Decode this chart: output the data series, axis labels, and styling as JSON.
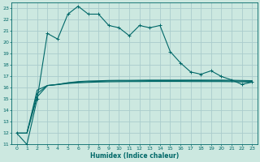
{
  "background_color": "#cce8e0",
  "grid_color": "#aacccc",
  "line_color": "#006868",
  "xlabel": "Humidex (Indice chaleur)",
  "xlim": [
    -0.5,
    23.5
  ],
  "ylim": [
    11,
    23.5
  ],
  "yticks": [
    11,
    12,
    13,
    14,
    15,
    16,
    17,
    18,
    19,
    20,
    21,
    22,
    23
  ],
  "xticks": [
    0,
    1,
    2,
    3,
    4,
    5,
    6,
    7,
    8,
    9,
    10,
    11,
    12,
    13,
    14,
    15,
    16,
    17,
    18,
    19,
    20,
    21,
    22,
    23
  ],
  "series1_x": [
    0,
    1,
    2,
    3,
    4,
    5,
    6,
    7,
    8,
    9,
    10,
    11,
    12,
    13,
    14,
    15,
    16,
    17,
    18,
    19,
    20,
    21,
    22,
    23
  ],
  "series1_y": [
    12.0,
    11.0,
    15.0,
    20.8,
    20.3,
    22.5,
    23.2,
    22.5,
    22.5,
    21.5,
    21.3,
    20.6,
    21.5,
    21.3,
    21.5,
    19.2,
    18.2,
    17.4,
    17.2,
    17.5,
    17.0,
    16.7,
    16.3,
    16.5
  ],
  "series2_x": [
    0,
    1,
    2,
    3,
    4,
    5,
    6,
    7,
    8,
    9,
    10,
    11,
    12,
    13,
    14,
    15,
    16,
    17,
    18,
    19,
    20,
    21,
    22,
    23
  ],
  "series2_y": [
    12.0,
    12.0,
    15.2,
    16.2,
    16.3,
    16.45,
    16.55,
    16.6,
    16.62,
    16.65,
    16.66,
    16.66,
    16.67,
    16.68,
    16.68,
    16.68,
    16.68,
    16.68,
    16.68,
    16.68,
    16.68,
    16.67,
    16.65,
    16.63
  ],
  "series3_x": [
    0,
    1,
    2,
    3,
    4,
    5,
    6,
    7,
    8,
    9,
    10,
    11,
    12,
    13,
    14,
    15,
    16,
    17,
    18,
    19,
    20,
    21,
    22,
    23
  ],
  "series3_y": [
    12.0,
    12.0,
    15.5,
    16.2,
    16.3,
    16.42,
    16.5,
    16.54,
    16.57,
    16.6,
    16.61,
    16.61,
    16.62,
    16.63,
    16.63,
    16.63,
    16.63,
    16.63,
    16.63,
    16.62,
    16.62,
    16.61,
    16.59,
    16.57
  ],
  "series4_x": [
    0,
    1,
    2,
    3,
    4,
    5,
    6,
    7,
    8,
    9,
    10,
    11,
    12,
    13,
    14,
    15,
    16,
    17,
    18,
    19,
    20,
    21,
    22,
    23
  ],
  "series4_y": [
    12.0,
    12.0,
    15.8,
    16.2,
    16.28,
    16.38,
    16.44,
    16.48,
    16.51,
    16.53,
    16.54,
    16.55,
    16.55,
    16.56,
    16.56,
    16.56,
    16.56,
    16.55,
    16.55,
    16.55,
    16.55,
    16.54,
    16.52,
    16.5
  ]
}
